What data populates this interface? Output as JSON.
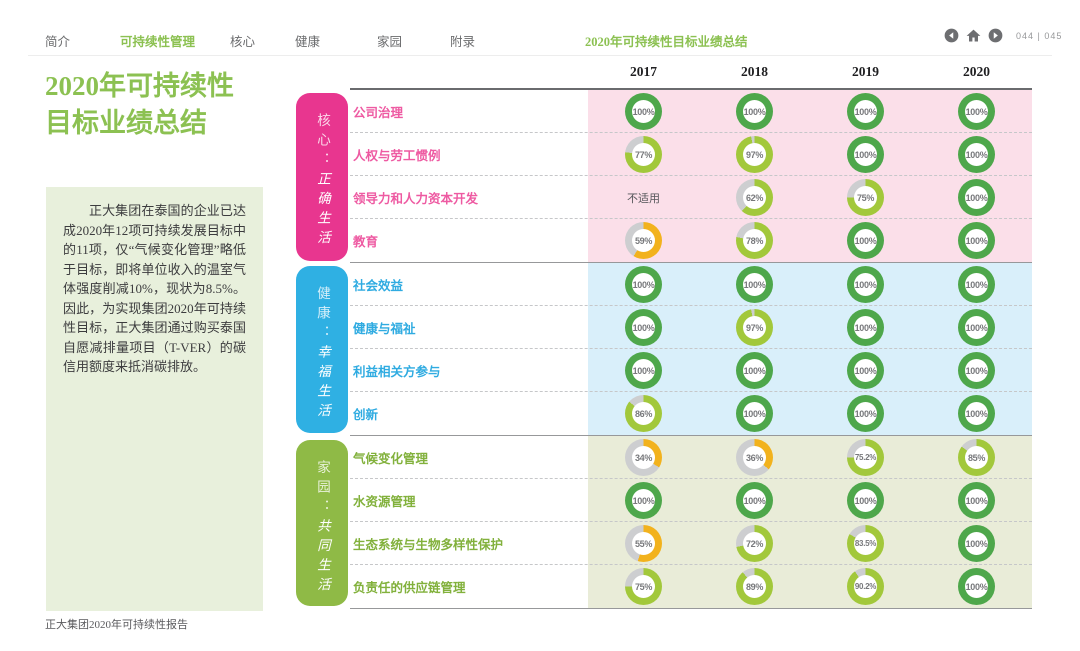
{
  "nav": {
    "items": [
      {
        "label": "简介",
        "active": false
      },
      {
        "label": "可持续性管理",
        "active": true
      },
      {
        "label": "核心",
        "active": false
      },
      {
        "label": "健康",
        "active": false
      },
      {
        "label": "家园",
        "active": false
      },
      {
        "label": "附录",
        "active": false
      }
    ],
    "section_title": "2020年可持续性目标业绩总结",
    "page_numbers": "044 | 045"
  },
  "sidebar": {
    "title_line1": "2020年可持续性",
    "title_line2": "目标业绩总结",
    "paragraph": "正大集团在泰国的企业已达成2020年12项可持续发展目标中的11项，仅“气候变化管理”略低于目标，即将单位收入的温室气体强度削减10%，现状为8.5%。因此，为实现集团2020年可持续性目标，正大集团通过购买泰国自愿减排量项目（T-VER）的碳信用额度来抵消碳排放。",
    "footer": "正大集团2020年可持续性报告"
  },
  "table": {
    "years": [
      "2017",
      "2018",
      "2019",
      "2020"
    ],
    "na_label": "不适用",
    "groups": [
      {
        "name_label": "核心：",
        "motto": "正确生活",
        "tab_color": "#e8368f",
        "row_bg": "#fbdfe9",
        "label_color": "#ee5aa2",
        "rows": [
          {
            "label": "公司治理",
            "values": [
              "100%",
              "100%",
              "100%",
              "100%"
            ]
          },
          {
            "label": "人权与劳工惯例",
            "values": [
              "77%",
              "97%",
              "100%",
              "100%"
            ]
          },
          {
            "label": "领导力和人力资本开发",
            "values": [
              "不适用",
              "62%",
              "75%",
              "100%"
            ]
          },
          {
            "label": "教育",
            "values": [
              "59%",
              "78%",
              "100%",
              "100%"
            ]
          }
        ]
      },
      {
        "name_label": "健康：",
        "motto": "幸福生活",
        "tab_color": "#2fb0e3",
        "row_bg": "#d9effa",
        "label_color": "#2fabe1",
        "rows": [
          {
            "label": "社会效益",
            "values": [
              "100%",
              "100%",
              "100%",
              "100%"
            ]
          },
          {
            "label": "健康与福祉",
            "values": [
              "100%",
              "97%",
              "100%",
              "100%"
            ]
          },
          {
            "label": "利益相关方参与",
            "values": [
              "100%",
              "100%",
              "100%",
              "100%"
            ]
          },
          {
            "label": "创新",
            "values": [
              "86%",
              "100%",
              "100%",
              "100%"
            ]
          }
        ]
      },
      {
        "name_label": "家园：",
        "motto": "共同生活",
        "tab_color": "#8fba46",
        "row_bg": "#e9ecd8",
        "label_color": "#82b13c",
        "rows": [
          {
            "label": "气候变化管理",
            "values": [
              "34%",
              "36%",
              "75.2%",
              "85%"
            ]
          },
          {
            "label": "水资源管理",
            "values": [
              "100%",
              "100%",
              "100%",
              "100%"
            ]
          },
          {
            "label": "生态系统与生物多样性保护",
            "values": [
              "55%",
              "72%",
              "83.5%",
              "100%"
            ]
          },
          {
            "label": "负责任的供应链管理",
            "values": [
              "75%",
              "89%",
              "90.2%",
              "100%"
            ]
          }
        ]
      }
    ]
  },
  "palette": {
    "donut_full": "#4ea74b",
    "donut_high": "#a2c83b",
    "donut_low": "#f2b21d",
    "donut_rest": "#cdced0",
    "donut_text": "#77787b",
    "accent_green": "#8cc152"
  }
}
